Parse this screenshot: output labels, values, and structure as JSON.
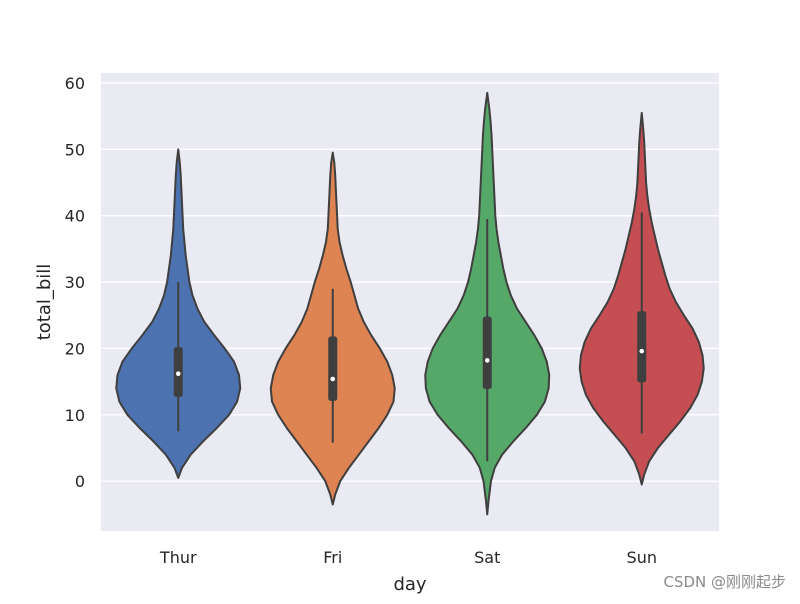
{
  "chart_data": {
    "type": "violin",
    "title": "",
    "xlabel": "day",
    "ylabel": "total_bill",
    "categories": [
      "Thur",
      "Fri",
      "Sat",
      "Sun"
    ],
    "ylim": [
      -7.5,
      61.5
    ],
    "yticks": [
      0,
      10,
      20,
      30,
      40,
      50,
      60
    ],
    "grid": true,
    "background": "#eaeaf2",
    "colors": [
      "#4c72b0",
      "#dd8452",
      "#55a868",
      "#c44e52"
    ],
    "violins": [
      {
        "category": "Thur",
        "color": "#4c72b0",
        "min": 7.5,
        "q1": 12.7,
        "median": 16.2,
        "q3": 20.2,
        "max": 30.0,
        "kde_min": 0.5,
        "kde_max": 50.0,
        "profile": [
          [
            0.5,
            0.0
          ],
          [
            2.0,
            0.06
          ],
          [
            4.0,
            0.2
          ],
          [
            6.0,
            0.4
          ],
          [
            8.0,
            0.62
          ],
          [
            10.0,
            0.82
          ],
          [
            12.0,
            0.95
          ],
          [
            14.0,
            1.0
          ],
          [
            16.0,
            0.98
          ],
          [
            18.0,
            0.9
          ],
          [
            20.0,
            0.75
          ],
          [
            22.0,
            0.58
          ],
          [
            24.0,
            0.42
          ],
          [
            26.0,
            0.31
          ],
          [
            28.0,
            0.23
          ],
          [
            30.0,
            0.18
          ],
          [
            32.0,
            0.15
          ],
          [
            34.0,
            0.12
          ],
          [
            36.0,
            0.1
          ],
          [
            38.0,
            0.08
          ],
          [
            40.0,
            0.07
          ],
          [
            42.0,
            0.06
          ],
          [
            44.0,
            0.05
          ],
          [
            46.0,
            0.04
          ],
          [
            48.0,
            0.025
          ],
          [
            50.0,
            0.0
          ]
        ]
      },
      {
        "category": "Fri",
        "color": "#dd8452",
        "min": 5.8,
        "q1": 12.1,
        "median": 15.4,
        "q3": 21.8,
        "max": 29.0,
        "kde_min": -3.5,
        "kde_max": 49.5,
        "profile": [
          [
            -3.5,
            0.0
          ],
          [
            -2.0,
            0.04
          ],
          [
            0.0,
            0.12
          ],
          [
            2.0,
            0.26
          ],
          [
            4.0,
            0.42
          ],
          [
            6.0,
            0.58
          ],
          [
            8.0,
            0.74
          ],
          [
            10.0,
            0.88
          ],
          [
            12.0,
            0.98
          ],
          [
            14.0,
            1.0
          ],
          [
            16.0,
            0.96
          ],
          [
            18.0,
            0.88
          ],
          [
            20.0,
            0.76
          ],
          [
            22.0,
            0.62
          ],
          [
            24.0,
            0.5
          ],
          [
            26.0,
            0.41
          ],
          [
            28.0,
            0.35
          ],
          [
            30.0,
            0.29
          ],
          [
            32.0,
            0.22
          ],
          [
            34.0,
            0.16
          ],
          [
            36.0,
            0.11
          ],
          [
            38.0,
            0.08
          ],
          [
            40.0,
            0.07
          ],
          [
            42.0,
            0.06
          ],
          [
            44.0,
            0.05
          ],
          [
            46.0,
            0.04
          ],
          [
            48.0,
            0.025
          ],
          [
            49.5,
            0.0
          ]
        ]
      },
      {
        "category": "Sat",
        "color": "#55a868",
        "min": 3.0,
        "q1": 13.9,
        "median": 18.2,
        "q3": 24.8,
        "max": 39.5,
        "kde_min": -5.0,
        "kde_max": 58.5,
        "profile": [
          [
            -5.0,
            0.0
          ],
          [
            -3.0,
            0.02
          ],
          [
            0.0,
            0.06
          ],
          [
            2.0,
            0.12
          ],
          [
            4.0,
            0.24
          ],
          [
            6.0,
            0.42
          ],
          [
            8.0,
            0.62
          ],
          [
            10.0,
            0.8
          ],
          [
            12.0,
            0.93
          ],
          [
            14.0,
            0.99
          ],
          [
            16.0,
            1.0
          ],
          [
            18.0,
            0.96
          ],
          [
            20.0,
            0.88
          ],
          [
            22.0,
            0.76
          ],
          [
            24.0,
            0.62
          ],
          [
            26.0,
            0.48
          ],
          [
            28.0,
            0.38
          ],
          [
            30.0,
            0.31
          ],
          [
            32.0,
            0.26
          ],
          [
            34.0,
            0.22
          ],
          [
            36.0,
            0.18
          ],
          [
            38.0,
            0.15
          ],
          [
            40.0,
            0.13
          ],
          [
            42.0,
            0.12
          ],
          [
            44.0,
            0.11
          ],
          [
            46.0,
            0.1
          ],
          [
            48.0,
            0.09
          ],
          [
            50.0,
            0.08
          ],
          [
            52.0,
            0.07
          ],
          [
            54.0,
            0.055
          ],
          [
            56.0,
            0.035
          ],
          [
            58.5,
            0.0
          ]
        ]
      },
      {
        "category": "Sun",
        "color": "#c44e52",
        "min": 7.2,
        "q1": 14.9,
        "median": 19.6,
        "q3": 25.6,
        "max": 40.5,
        "kde_min": -0.5,
        "kde_max": 55.5,
        "profile": [
          [
            -0.5,
            0.0
          ],
          [
            1.0,
            0.04
          ],
          [
            3.0,
            0.12
          ],
          [
            5.0,
            0.26
          ],
          [
            7.0,
            0.44
          ],
          [
            9.0,
            0.62
          ],
          [
            11.0,
            0.78
          ],
          [
            13.0,
            0.9
          ],
          [
            15.0,
            0.97
          ],
          [
            17.0,
            1.0
          ],
          [
            19.0,
            0.98
          ],
          [
            21.0,
            0.92
          ],
          [
            23.0,
            0.82
          ],
          [
            25.0,
            0.68
          ],
          [
            27.0,
            0.55
          ],
          [
            29.0,
            0.45
          ],
          [
            31.0,
            0.38
          ],
          [
            33.0,
            0.32
          ],
          [
            35.0,
            0.26
          ],
          [
            37.0,
            0.21
          ],
          [
            39.0,
            0.16
          ],
          [
            41.0,
            0.12
          ],
          [
            43.0,
            0.09
          ],
          [
            45.0,
            0.07
          ],
          [
            47.0,
            0.06
          ],
          [
            49.0,
            0.05
          ],
          [
            51.0,
            0.04
          ],
          [
            53.0,
            0.025
          ],
          [
            55.5,
            0.0
          ]
        ]
      }
    ]
  },
  "watermark": "CSDN @刚刚起步"
}
